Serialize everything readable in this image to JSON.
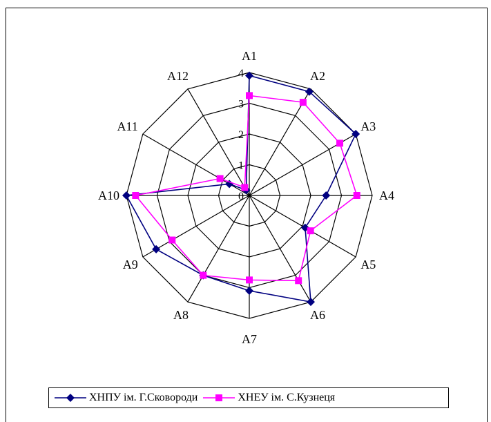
{
  "chart_data": {
    "type": "radar",
    "categories": [
      "A1",
      "A2",
      "A3",
      "A4",
      "A5",
      "A6",
      "A7",
      "A8",
      "A9",
      "A10",
      "A11",
      "A12"
    ],
    "r_ticks": [
      "0",
      "1",
      "2",
      "3",
      "4"
    ],
    "r_range": [
      0,
      4
    ],
    "grid": true,
    "legend_position": "bottom",
    "series": [
      {
        "name": "ХНПУ ім. Г.Сковороди",
        "color": "#000080",
        "marker": "diamond",
        "values": [
          3.9,
          3.9,
          4.0,
          2.5,
          2.1,
          4.0,
          3.1,
          3.0,
          3.5,
          4.0,
          0.75,
          0.2
        ]
      },
      {
        "name": "ХНЕУ ім. С.Кузнеця",
        "color": "#FF00FF",
        "marker": "square",
        "values": [
          3.25,
          3.5,
          3.4,
          3.5,
          2.3,
          3.2,
          2.75,
          3.0,
          2.9,
          3.7,
          1.1,
          0.3
        ]
      }
    ]
  }
}
